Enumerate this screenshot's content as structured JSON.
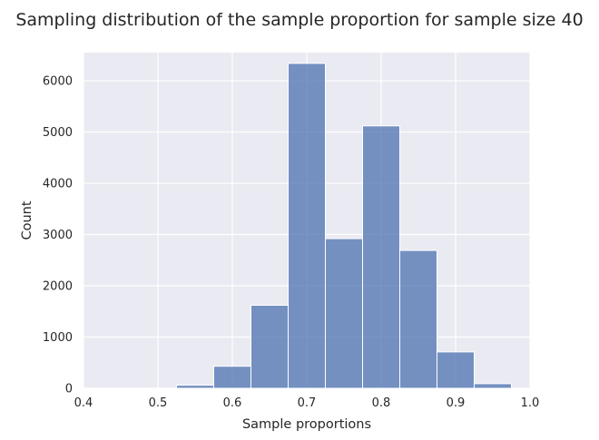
{
  "chart_data": {
    "type": "bar",
    "title": "Sampling distribution of the sample proportion for sample size 40",
    "xlabel": "Sample proportions",
    "ylabel": "Count",
    "xlim": [
      0.4,
      1.0
    ],
    "ylim": [
      0,
      6550
    ],
    "xticks": [
      "0.4",
      "0.5",
      "0.6",
      "0.7",
      "0.8",
      "0.9",
      "1.0"
    ],
    "yticks": [
      "0",
      "1000",
      "2000",
      "3000",
      "4000",
      "5000",
      "6000"
    ],
    "grid": true,
    "color": "#4c72b0",
    "plot_background": "#eaeaf2",
    "bins": [
      {
        "x0": 0.525,
        "x1": 0.575,
        "count": 60
      },
      {
        "x0": 0.575,
        "x1": 0.625,
        "count": 430
      },
      {
        "x0": 0.625,
        "x1": 0.675,
        "count": 1620
      },
      {
        "x0": 0.675,
        "x1": 0.725,
        "count": 6340
      },
      {
        "x0": 0.725,
        "x1": 0.775,
        "count": 2920
      },
      {
        "x0": 0.775,
        "x1": 0.825,
        "count": 5120
      },
      {
        "x0": 0.825,
        "x1": 0.875,
        "count": 2690
      },
      {
        "x0": 0.875,
        "x1": 0.925,
        "count": 710
      },
      {
        "x0": 0.925,
        "x1": 0.975,
        "count": 90
      }
    ]
  }
}
